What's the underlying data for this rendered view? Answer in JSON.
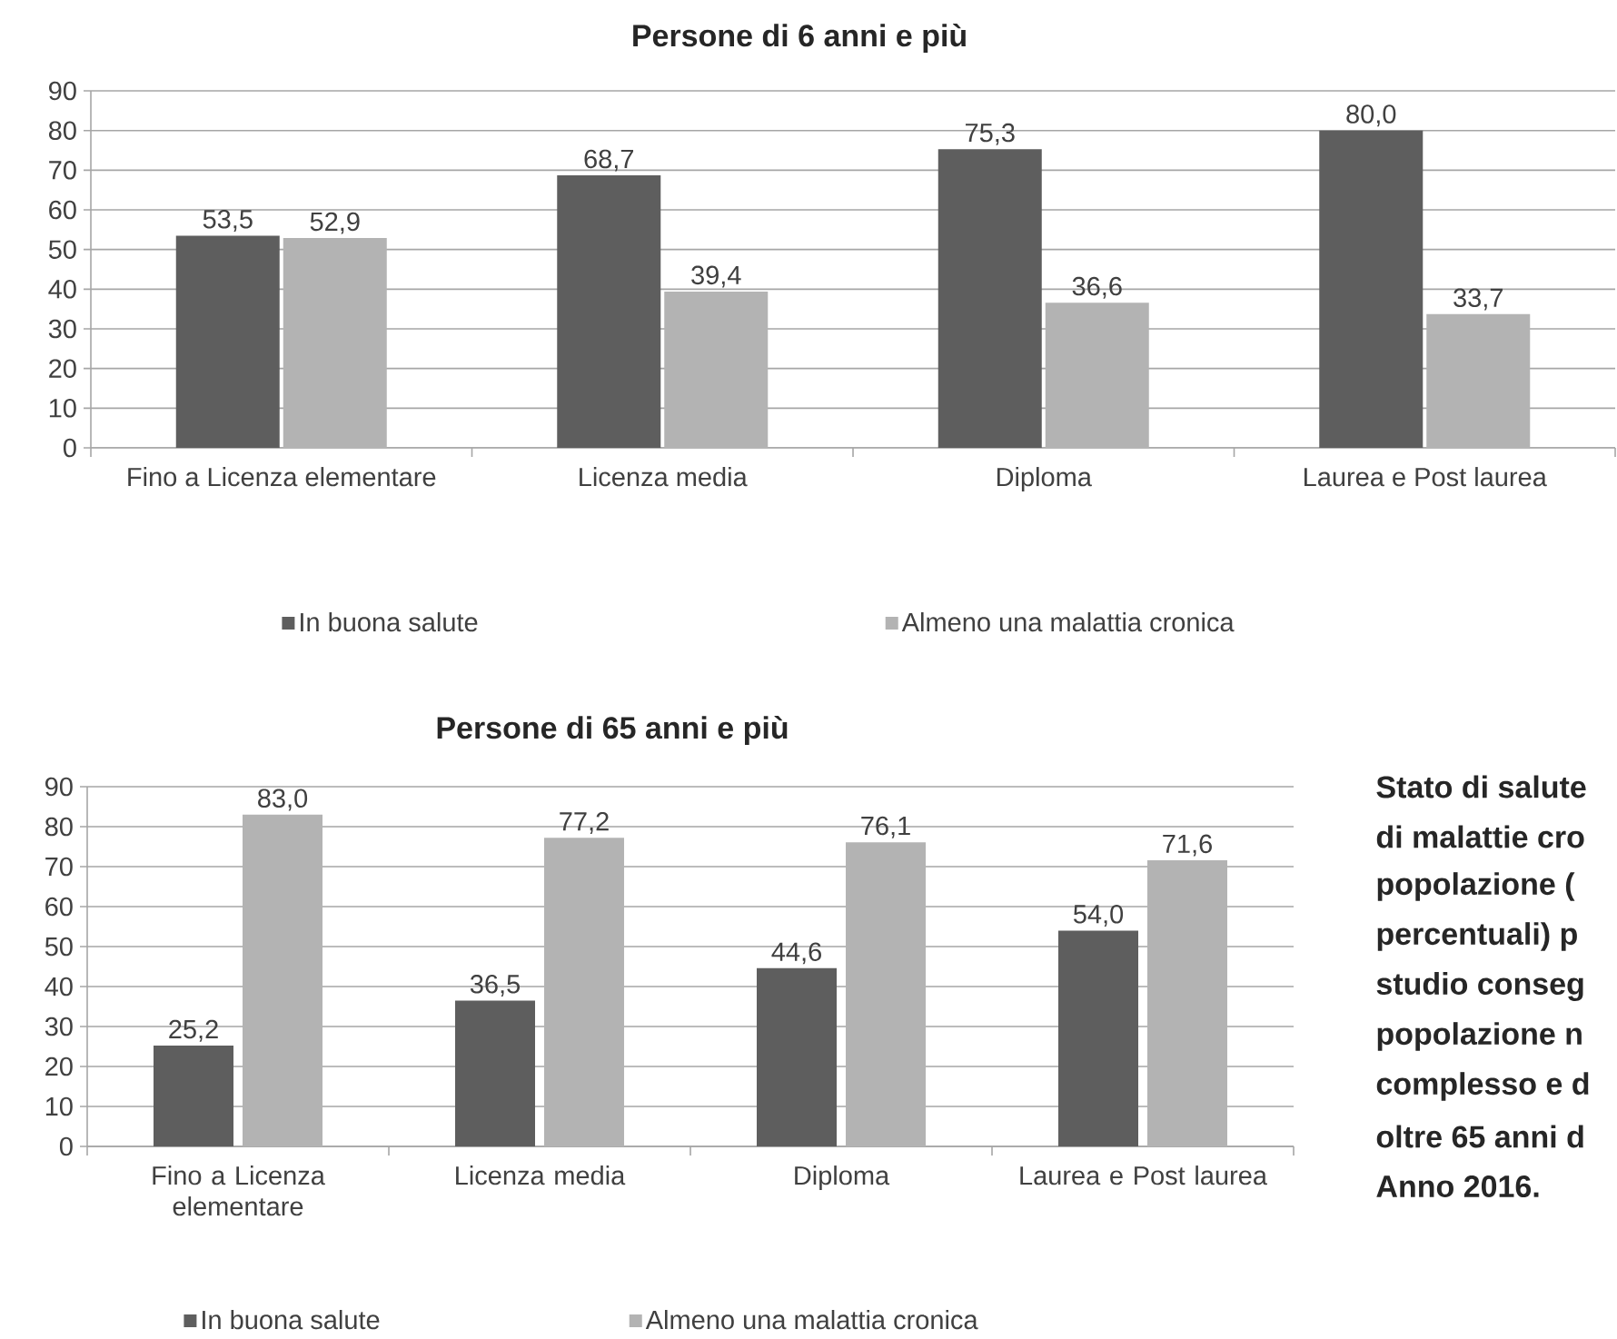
{
  "chart_data": [
    {
      "type": "bar",
      "title": "Persone di 6 anni e più",
      "categories": [
        "Fino a Licenza elementare",
        "Licenza media",
        "Diploma",
        "Laurea e Post laurea"
      ],
      "series": [
        {
          "name": "In buona salute",
          "color": "#5e5e5e",
          "values": [
            53.5,
            68.7,
            75.3,
            80.0
          ],
          "value_labels": [
            "53,5",
            "68,7",
            "75,3",
            "80,0"
          ]
        },
        {
          "name": "Almeno una malattia cronica",
          "color": "#b3b3b3",
          "values": [
            52.9,
            39.4,
            36.6,
            33.7
          ],
          "value_labels": [
            "52,9",
            "39,4",
            "36,6",
            "33,7"
          ]
        }
      ],
      "ylim": [
        0,
        90
      ],
      "yticks": [
        0,
        10,
        20,
        30,
        40,
        50,
        60,
        70,
        80,
        90
      ],
      "grid": "y",
      "legend": "bottom"
    },
    {
      "type": "bar",
      "title": "Persone di 65 anni e più",
      "categories": [
        "Fino a Licenza elementare",
        "Licenza media",
        "Diploma",
        "Laurea e Post laurea"
      ],
      "series": [
        {
          "name": "In buona salute",
          "color": "#5e5e5e",
          "values": [
            25.2,
            36.5,
            44.6,
            54.0
          ],
          "value_labels": [
            "25,2",
            "36,5",
            "44,6",
            "54,0"
          ]
        },
        {
          "name": "Almeno una malattia cronica",
          "color": "#b3b3b3",
          "values": [
            83.0,
            77.2,
            76.1,
            71.6
          ],
          "value_labels": [
            "83,0",
            "77,2",
            "76,1",
            "71,6"
          ]
        }
      ],
      "ylim": [
        0,
        90
      ],
      "yticks": [
        0,
        10,
        20,
        30,
        40,
        50,
        60,
        70,
        80,
        90
      ],
      "grid": "y",
      "legend": "bottom",
      "annotations": [
        "Stato di salute",
        "di malattie cro",
        "popolazione (",
        "percentuali) p",
        "studio conseg",
        "popolazione n",
        "complesso e d",
        "oltre 65 anni d",
        "Anno 2016."
      ]
    }
  ]
}
